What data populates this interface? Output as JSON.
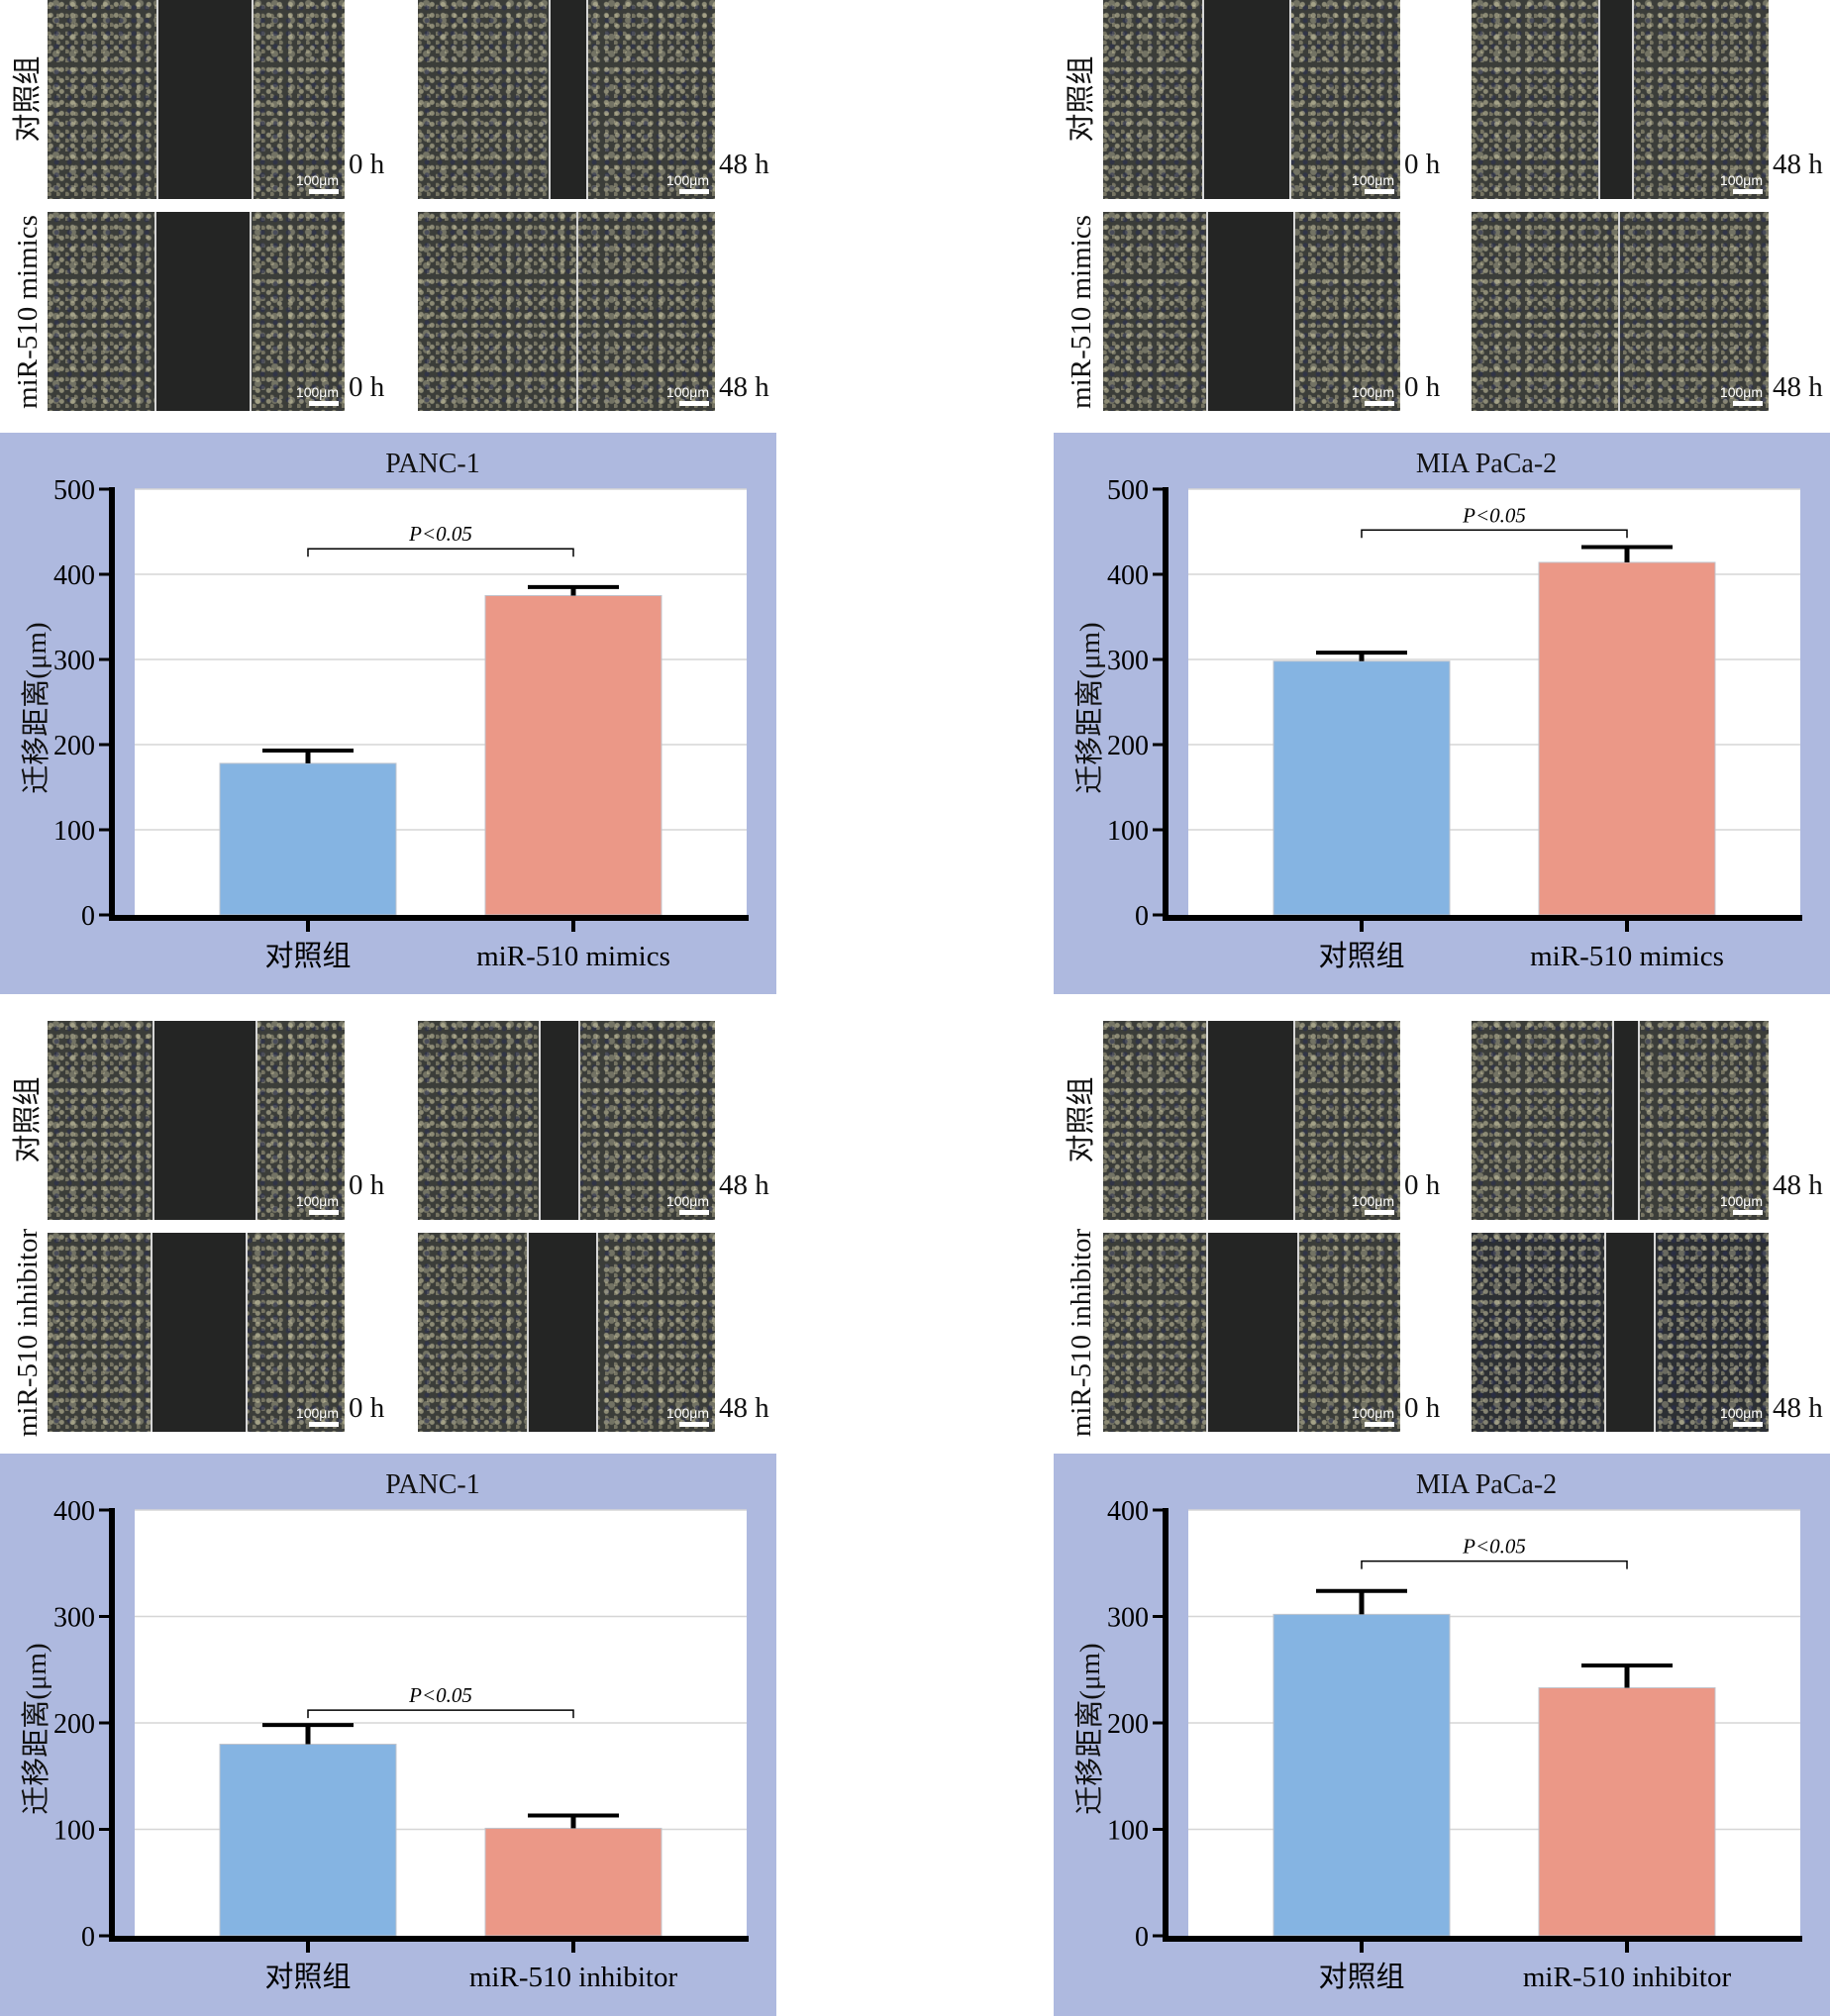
{
  "labels": {
    "control": "对照组",
    "mimics": "miR-510 mimics",
    "inhibitor": "miR-510 inhibitor",
    "t0": "0 h",
    "t48": "48 h",
    "scale": "100μm"
  },
  "colors": {
    "panel_bg": "#aeb9df",
    "control_bar": "#85b4e2",
    "treatment_bar": "#eb9887",
    "grid": "#d6d6d6"
  },
  "chart_data": [
    {
      "type": "bar",
      "title": "PANC-1",
      "ylabel": "迁移距离(μm)",
      "categories": [
        "对照组",
        "miR-510 mimics"
      ],
      "values": [
        178,
        375
      ],
      "errors": [
        15,
        10
      ],
      "ylim": [
        0,
        500
      ],
      "yticks": [
        0,
        100,
        200,
        300,
        400,
        500
      ],
      "significance": {
        "label": "P<0.05",
        "level": 430
      },
      "grid": true
    },
    {
      "type": "bar",
      "title": "MIA PaCa-2",
      "ylabel": "迁移距离(μm)",
      "categories": [
        "对照组",
        "miR-510 mimics"
      ],
      "values": [
        298,
        414
      ],
      "errors": [
        10,
        18
      ],
      "ylim": [
        0,
        500
      ],
      "yticks": [
        0,
        100,
        200,
        300,
        400,
        500
      ],
      "significance": {
        "label": "P<0.05",
        "level": 452
      },
      "grid": true
    },
    {
      "type": "bar",
      "title": "PANC-1",
      "ylabel": "迁移距离(μm)",
      "categories": [
        "对照组",
        "miR-510 inhibitor"
      ],
      "values": [
        180,
        101
      ],
      "errors": [
        18,
        12
      ],
      "ylim": [
        0,
        400
      ],
      "yticks": [
        0,
        100,
        200,
        300,
        400
      ],
      "significance": {
        "label": "P<0.05",
        "level": 212
      },
      "grid": true
    },
    {
      "type": "bar",
      "title": "MIA PaCa-2",
      "ylabel": "迁移距离(μm)",
      "categories": [
        "对照组",
        "miR-510 inhibitor"
      ],
      "values": [
        302,
        233
      ],
      "errors": [
        22,
        21
      ],
      "ylim": [
        0,
        400
      ],
      "yticks": [
        0,
        100,
        200,
        300,
        400
      ],
      "significance": {
        "label": "P<0.05",
        "level": 352
      },
      "grid": true
    }
  ]
}
